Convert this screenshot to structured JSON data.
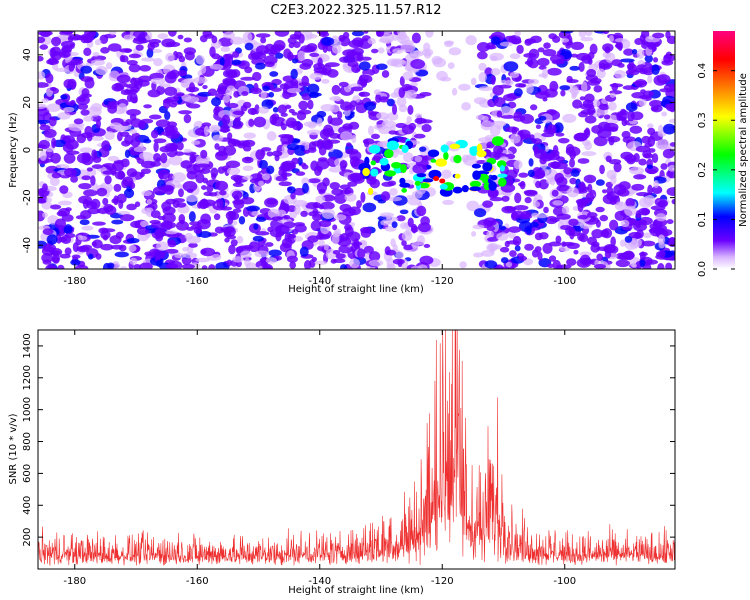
{
  "figure": {
    "title": "C2E3.2022.325.11.57.R12"
  },
  "chart_data": [
    {
      "type": "heatmap",
      "title": "C2E3.2022.325.11.57.R12",
      "xlabel": "Height of straight line (km)",
      "ylabel": "Frequency (Hz)",
      "xlim": [
        -186,
        -82
      ],
      "ylim": [
        -50,
        50
      ],
      "xticks": [
        -180,
        -160,
        -140,
        -120,
        -100
      ],
      "yticks": [
        -40,
        -20,
        0,
        20,
        40
      ],
      "colorbar": {
        "label": "Normalized spectral amplitude",
        "range": [
          0,
          0.48
        ],
        "ticks": [
          0.0,
          0.1,
          0.2,
          0.3,
          0.4
        ],
        "colormap": [
          "#ffffff",
          "#d8b4ff",
          "#6a00ff",
          "#0000ff",
          "#00ffff",
          "#00ff00",
          "#ffff00",
          "#ff8000",
          "#ff0000",
          "#ff0080"
        ]
      },
      "blank_band_km": [
        -122,
        -114
      ],
      "peak_region": {
        "x": [
          -133,
          -110
        ],
        "y": [
          -18,
          4
        ],
        "max_amplitude": 0.45
      }
    },
    {
      "type": "line",
      "title": "",
      "xlabel": "Height of straight line (km)",
      "ylabel": "SNR (10 * v/v)",
      "xlim": [
        -186,
        -82
      ],
      "ylim": [
        0,
        1500
      ],
      "xticks": [
        -180,
        -160,
        -140,
        -120,
        -100
      ],
      "yticks": [
        200,
        400,
        600,
        800,
        1000,
        1200,
        1400
      ],
      "series": [
        {
          "color": "#ee3030",
          "baseline_level": 130,
          "noise_range": [
            20,
            300
          ],
          "points": [
            {
              "x": -186,
              "y": 150
            },
            {
              "x": -170,
              "y": 140
            },
            {
              "x": -150,
              "y": 135
            },
            {
              "x": -135,
              "y": 160
            },
            {
              "x": -128,
              "y": 260
            },
            {
              "x": -124,
              "y": 380
            },
            {
              "x": -121.5,
              "y": 700
            },
            {
              "x": -120.5,
              "y": 1250
            },
            {
              "x": -119.8,
              "y": 950
            },
            {
              "x": -119,
              "y": 1100
            },
            {
              "x": -118.5,
              "y": 1500
            },
            {
              "x": -117.5,
              "y": 1250
            },
            {
              "x": -116.5,
              "y": 700
            },
            {
              "x": -115,
              "y": 500
            },
            {
              "x": -113,
              "y": 420
            },
            {
              "x": -112,
              "y": 720
            },
            {
              "x": -111,
              "y": 600
            },
            {
              "x": -109.5,
              "y": 400
            },
            {
              "x": -108,
              "y": 220
            },
            {
              "x": -100,
              "y": 140
            },
            {
              "x": -82,
              "y": 150
            }
          ]
        }
      ]
    }
  ]
}
